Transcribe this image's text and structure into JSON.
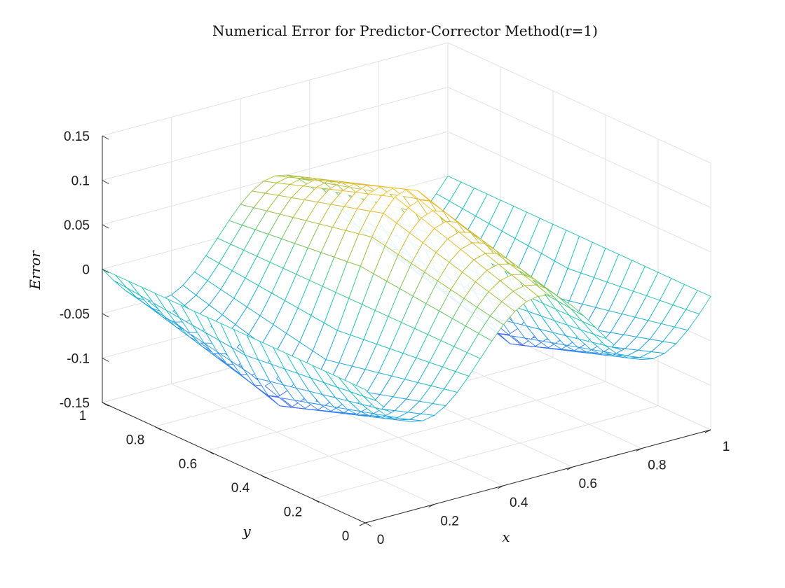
{
  "chart_data": {
    "type": "mesh",
    "title": "Numerical Error for Predictor-Corrector Method(r=1)",
    "xlabel": "x",
    "ylabel": "y",
    "zlabel": "Error",
    "xlim": [
      0,
      1
    ],
    "ylim": [
      0,
      1
    ],
    "zlim": [
      -0.15,
      0.15
    ],
    "x_ticks": [
      "0",
      "0.2",
      "0.4",
      "0.6",
      "0.8",
      "1"
    ],
    "y_ticks": [
      "0",
      "0.2",
      "0.4",
      "0.6",
      "0.8",
      "1"
    ],
    "z_ticks": [
      "-0.15",
      "-0.1",
      "-0.05",
      "0",
      "0.05",
      "0.1",
      "0.15"
    ],
    "grid": true,
    "colormap": "parula",
    "x_grid_points": [
      0,
      0.0333,
      0.0667,
      0.1,
      0.1333,
      0.1667,
      0.2,
      0.2333,
      0.2667,
      0.3,
      0.3333,
      0.3667,
      0.4,
      0.4333,
      0.4667,
      0.5,
      0.5333,
      0.5667,
      0.6,
      0.6333,
      0.6667,
      0.7,
      0.7333,
      0.7667,
      0.8,
      0.8333,
      0.8667,
      0.9,
      0.9333,
      0.9667,
      1
    ],
    "y_grid_points": [
      0,
      0.05,
      0.1,
      0.15,
      0.2,
      0.25,
      0.3,
      0.35,
      0.4,
      0.45,
      0.5,
      0.55,
      0.6,
      0.65,
      0.7,
      0.75,
      0.8,
      0.85,
      0.9,
      0.95,
      1
    ],
    "error_along_x": [
      0,
      -0.0163,
      -0.031,
      -0.0426,
      -0.05,
      -0.0526,
      -0.05,
      -0.0426,
      -0.031,
      -0.0163,
      0,
      0.0163,
      0.031,
      0.0426,
      0.05,
      0.0526,
      0.05,
      0.0426,
      0.031,
      0.0163,
      0,
      -0.0163,
      -0.031,
      -0.0426,
      -0.05,
      -0.0526,
      -0.05,
      -0.0426,
      -0.031,
      -0.0163,
      0
    ],
    "amplitude_along_y": [
      1.0,
      1.1,
      1.2,
      1.3,
      1.4,
      1.5,
      1.6,
      1.7,
      1.8,
      1.9,
      2.0,
      1.9,
      1.8,
      1.7,
      1.6,
      1.5,
      1.4,
      1.3,
      1.2,
      1.1,
      1.0
    ],
    "colors": [
      "#3e26a8",
      "#4a42e8",
      "#2f7ef0",
      "#1ba7d6",
      "#1ac1bf",
      "#3fc882",
      "#a5be3a",
      "#e7b82c",
      "#fcd630",
      "#f9fb0e"
    ]
  }
}
